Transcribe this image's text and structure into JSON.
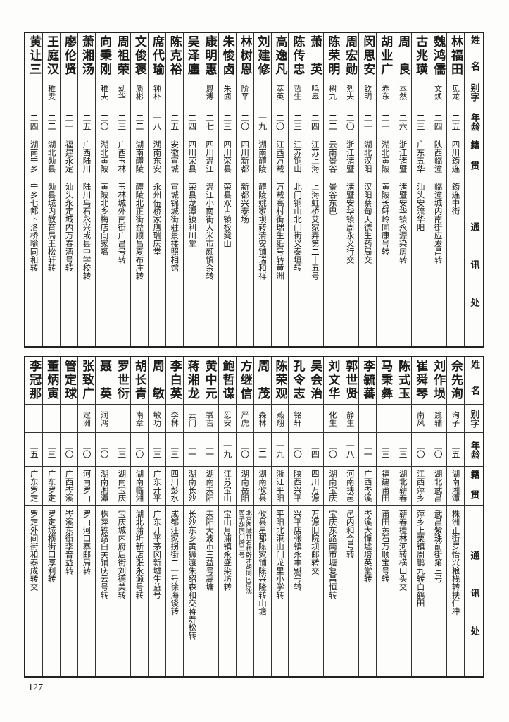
{
  "header": {
    "name": "姓名",
    "alias": "别字",
    "age": "年龄",
    "origin": "籍贯",
    "address": "通讯处"
  },
  "tables": [
    {
      "rows": [
        {
          "name": "林福田",
          "alias": "见龙",
          "age": "二五",
          "origin": "四川筠连",
          "address": "筠连中街"
        },
        {
          "name": "魏鸿儒",
          "alias": "文焕",
          "age": "二四",
          "origin": "陕西临潼",
          "address": "临潼城内南街应发昌转"
        },
        {
          "name": "古兆璜",
          "alias": "",
          "age": "二三",
          "origin": "广东五华",
          "address": "汕头安流华阳"
        },
        {
          "name": "周良",
          "alias": "本然",
          "age": "二六",
          "origin": "浙江诸暨",
          "address": "诸暨安华镇永源染房转"
        },
        {
          "name": "胡业广",
          "alias": "赤东",
          "age": "二一",
          "origin": "湖北黄陂",
          "address": "黄陂长轩岭同康号转"
        },
        {
          "name": "闵思安",
          "alias": "钦明",
          "age": "二一",
          "origin": "湖北汉阳",
          "address": "汉阳蔡甸天德生药局交"
        },
        {
          "name": "周宏勋",
          "alias": "烈夫",
          "age": "二〇",
          "origin": "浙江诸暨",
          "address": "诸暨安华镇周永义行交"
        },
        {
          "name": "陈荣明",
          "alias": "树九",
          "age": "二二",
          "origin": "云南景谷",
          "address": "景谷东巴"
        },
        {
          "name": "萧英",
          "alias": "鸣皋",
          "age": "二四",
          "origin": "江苏上海",
          "address": "上海虹桥艾家弄第二十五号"
        },
        {
          "name": "陈传忠",
          "alias": "哲生",
          "age": "二三",
          "origin": "江苏铜山",
          "address": "北门铜山北门街义泰垣转"
        },
        {
          "name": "高逸凡",
          "alias": "萃英",
          "age": "二〇",
          "origin": "江西万载",
          "address": "万载高村街瑞生纸号转黄洲"
        },
        {
          "name": "刘建修",
          "alias": "",
          "age": "一九",
          "origin": "湖南醴陵",
          "address": "醴陵姚家坝转清安铺瑞和祥"
        },
        {
          "name": "林树恩",
          "alias": "阶平",
          "age": "二〇",
          "origin": "四川新都",
          "address": "新都兴泰场"
        },
        {
          "name": "朱悛卤",
          "alias": "朱卤",
          "age": "二三",
          "origin": "四川荣县",
          "address": "荣县双古镇板凳山"
        },
        {
          "name": "康明惠",
          "alias": "恩溥",
          "age": "二七",
          "origin": "四川温江",
          "address": "温江小南街大米市颜慎余转"
        },
        {
          "name": "吴泽廛",
          "alias": "",
          "age": "二四",
          "origin": "四川荣县",
          "address": "荣县龙潭镇利川堂"
        },
        {
          "name": "陈克裕",
          "alias": "",
          "age": "二五",
          "origin": "安徽宣城",
          "address": "宣城锦城街驻景楼照相馆"
        },
        {
          "name": "席代瑜",
          "alias": "钝朴",
          "age": "一八",
          "origin": "湖南东安",
          "address": "永州伍桥家膺瑞庆堂"
        },
        {
          "name": "文俊褒",
          "alias": "质彬",
          "age": "二二",
          "origin": "湖南醴陵",
          "address": "醴陵北正街益顺昌夏布庄转"
        },
        {
          "name": "周祖荣",
          "alias": "幼华",
          "age": "二三",
          "origin": "广西玉林",
          "address": "玉林城外南街广昌号转"
        },
        {
          "name": "向秉刚",
          "alias": "稚夫",
          "age": "二〇",
          "origin": "湖北黄陂",
          "address": "黄陂北乡梅店向家嘴"
        },
        {
          "name": "萧湘汤",
          "alias": "",
          "age": "二五",
          "origin": "广西陆川",
          "address": "陆川乌石永兴或县中学校转"
        },
        {
          "name": "廖伦贤",
          "alias": "",
          "age": "二一",
          "origin": "福建永定",
          "address": "汕头永定城内万春酒号转"
        },
        {
          "name": "王庭汉",
          "alias": "稚雯",
          "age": "二二",
          "origin": "湖北勋县",
          "address": "勋县城内教育局王松轩转"
        },
        {
          "name": "黄让三",
          "alias": "",
          "age": "二四",
          "origin": "湖南宁乡",
          "address": "宁乡七都下洛桥喻同和转"
        }
      ]
    },
    {
      "rows": [
        {
          "name": "佘先洵",
          "alias": "洵子",
          "age": "二五",
          "origin": "湖南湘潭",
          "address": "株洲正街罗怡兴粮栈转扶仁冲"
        },
        {
          "name": "刘作埙",
          "alias": "篪辅",
          "age": "二〇",
          "origin": "湖北武昌",
          "address": "武昌紫珠前街第三号"
        },
        {
          "name": "崔舜琴",
          "alias": "南风",
          "age": "二〇",
          "origin": "江西萍乡",
          "address": "萍乡上栗镇周鹏九转白鹤田"
        },
        {
          "name": "陈式玉",
          "alias": "",
          "age": "二三",
          "origin": "湖北蕲春",
          "address": "蕲春檀林河转横山头交"
        },
        {
          "name": "马秉彝",
          "alias": "",
          "age": "二三",
          "origin": "福建莆田",
          "address": "莆田黄石万顺宝号转"
        },
        {
          "name": "李毓蕃",
          "alias": "",
          "age": "二一",
          "origin": "广西岑溪",
          "address": "岑溪大憧墟培英堂转"
        },
        {
          "name": "郭世贤",
          "alias": "静生",
          "age": "一八",
          "origin": "河南扶邑",
          "address": "邑内和合号转"
        },
        {
          "name": "刘文华",
          "alias": "化生",
          "age": "二〇",
          "origin": "湖南宝庆",
          "address": "宝庆东路两市塘复昌恒转"
        },
        {
          "name": "吴会治",
          "alias": "",
          "age": "二四",
          "origin": "四川万源",
          "address": "万源旧院坝邮转交"
        },
        {
          "name": "孔令志",
          "alias": "铭轩",
          "age": "二〇",
          "origin": "陕西兴平",
          "address": "兴平店张镇永丰魁号转"
        },
        {
          "name": "陈荣观",
          "alias": "燕翔",
          "age": "一九",
          "origin": "浙江平阳",
          "address": "平阳北港山门龙里小学转"
        },
        {
          "name": "周茂",
          "alias": "森林",
          "age": "二二",
          "origin": "湖南攸县",
          "address": "攸县星都陈家铺陈兴隆转山塘"
        },
        {
          "name": "方继信",
          "alias": "严虎",
          "age": "二〇",
          "origin": "湖南岳阳",
          "address": "北京西城甘石桥辟才胡同内南沈篦子胡同门牌二号"
        },
        {
          "name": "鲍哲谋",
          "alias": "忍安",
          "age": "一九",
          "origin": "江苏宝山",
          "address": "宝山月浦镇永盛染坊转"
        },
        {
          "name": "黄中元",
          "alias": "裳吉",
          "age": "二一",
          "origin": "湖南耒阳",
          "address": "耒阳大波市三益号高塘"
        },
        {
          "name": "蒋湘龙",
          "alias": "云门",
          "age": "二一",
          "origin": "湖南长沙",
          "address": "长沙东乡黄狮渡朱绍森和交蒋寿松转"
        },
        {
          "name": "李白英",
          "alias": "李林",
          "age": "二三",
          "origin": "四川彭水",
          "address": "成都汪家拐街二一号徐海谈转"
        },
        {
          "name": "周敏",
          "alias": "敏功",
          "age": "二三",
          "origin": "广东开平",
          "address": "广东开平茅冈新墟生益号"
        },
        {
          "name": "胡长青",
          "alias": "南章",
          "age": "二〇",
          "origin": "湖南临湘",
          "address": "湖北蒲圻新店张永源号转"
        },
        {
          "name": "罗世衍",
          "alias": "",
          "age": "二三",
          "origin": "湖南宝庆",
          "address": "宝庆城内府后街刘德美转"
        },
        {
          "name": "聂英",
          "alias": "润鸿",
          "age": "二〇",
          "origin": "湖南湘潭",
          "address": "株萍铁路白关铺庆云号转"
        },
        {
          "name": "张致广",
          "alias": "定洲",
          "age": "二〇",
          "origin": "河南罗山",
          "address": "罗山河口寨邮局转"
        },
        {
          "name": "管定球",
          "alias": "",
          "age": "二〇",
          "origin": "广西岑溪",
          "address": "岑溪东街李普益转"
        },
        {
          "name": "董炳寅",
          "alias": "",
          "age": "二三",
          "origin": "广东罗定",
          "address": "罗定城横街口厚利转"
        },
        {
          "name": "李冠那",
          "alias": "",
          "age": "二五",
          "origin": "广东罗定",
          "address": "罗定外间街和泰成转交"
        }
      ]
    }
  ],
  "page_number": "127"
}
